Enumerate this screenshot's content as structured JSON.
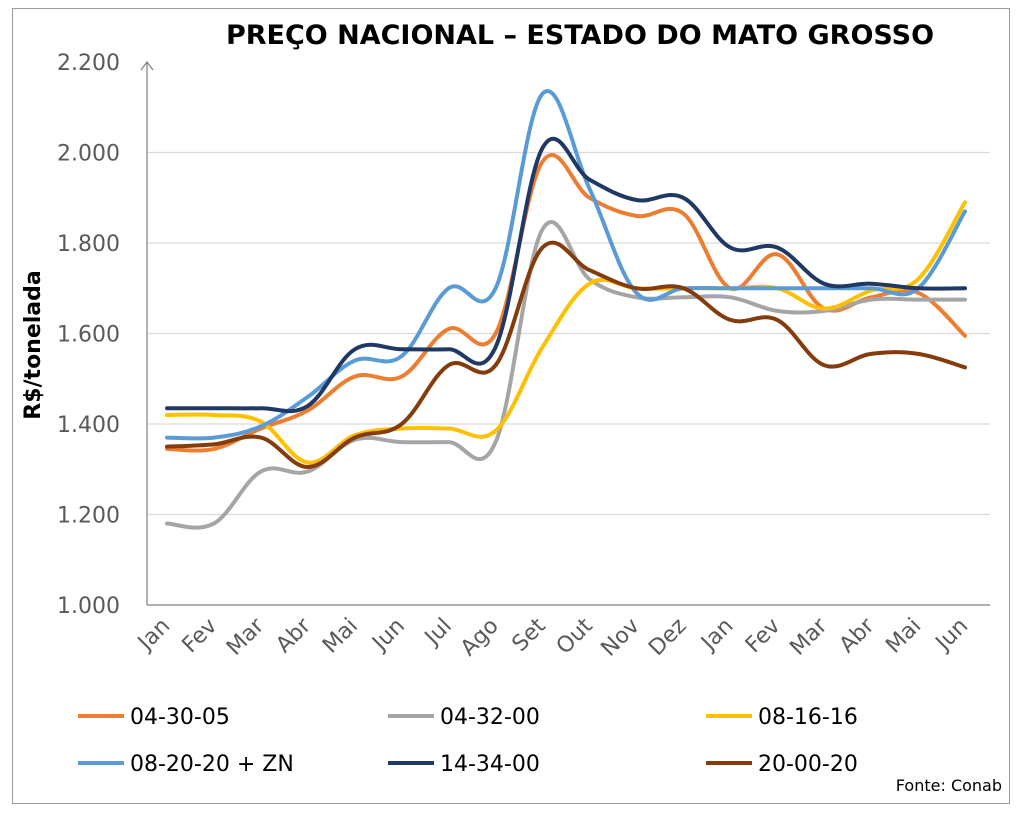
{
  "chart_data": {
    "type": "line",
    "title": "PREÇO NACIONAL – ESTADO DO MATO GROSSO",
    "ylabel": "R$/tonelada",
    "xlabel": "",
    "ylim": [
      1000,
      2200
    ],
    "yticks": [
      1000,
      1200,
      1400,
      1600,
      1800,
      2000,
      2200
    ],
    "ytick_labels": [
      "1.000",
      "1.200",
      "1.400",
      "1.600",
      "1.800",
      "2.000",
      "2.200"
    ],
    "grid": "horizontal",
    "legend_position": "bottom",
    "categories": [
      "Jan",
      "Fev",
      "Mar",
      "Abr",
      "Mai",
      "Jun",
      "Jul",
      "Ago",
      "Set",
      "Out",
      "Nov",
      "Dez",
      "Jan",
      "Fev",
      "Mar",
      "Abr",
      "Mai",
      "Jun"
    ],
    "series": [
      {
        "name": "04-30-05",
        "color": "#ED7D31",
        "values": [
          1345,
          1345,
          1390,
          1430,
          1505,
          1505,
          1610,
          1600,
          1980,
          1900,
          1860,
          1865,
          1700,
          1775,
          1655,
          1680,
          1690,
          1595
        ]
      },
      {
        "name": "04-32-00",
        "color": "#A5A5A5",
        "values": [
          1180,
          1180,
          1295,
          1295,
          1365,
          1360,
          1360,
          1360,
          1830,
          1720,
          1680,
          1680,
          1680,
          1650,
          1650,
          1675,
          1675,
          1675
        ]
      },
      {
        "name": "08-16-16",
        "color": "#FFC000",
        "values": [
          1420,
          1420,
          1405,
          1315,
          1375,
          1390,
          1390,
          1385,
          1570,
          1710,
          1700,
          1700,
          1700,
          1700,
          1655,
          1695,
          1720,
          1890
        ]
      },
      {
        "name": "08-20-20 + ZN",
        "color": "#5B9BD5",
        "values": [
          1370,
          1370,
          1395,
          1460,
          1540,
          1550,
          1700,
          1700,
          2130,
          1920,
          1690,
          1700,
          1700,
          1700,
          1700,
          1700,
          1700,
          1870
        ]
      },
      {
        "name": "14-34-00",
        "color": "#203864",
        "values": [
          1435,
          1435,
          1435,
          1440,
          1565,
          1565,
          1565,
          1570,
          2010,
          1940,
          1895,
          1900,
          1790,
          1790,
          1710,
          1710,
          1700,
          1700
        ]
      },
      {
        "name": "20-00-20",
        "color": "#843C0C",
        "values": [
          1350,
          1355,
          1370,
          1305,
          1370,
          1400,
          1530,
          1530,
          1790,
          1740,
          1700,
          1700,
          1630,
          1630,
          1530,
          1555,
          1555,
          1525
        ]
      }
    ]
  },
  "source": "Fonte: Conab"
}
